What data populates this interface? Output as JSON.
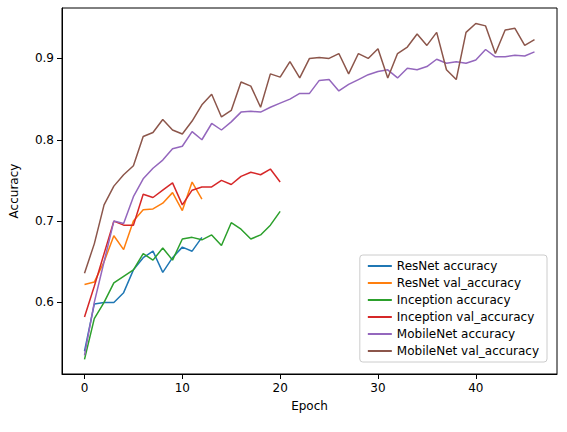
{
  "chart_data": {
    "type": "line",
    "x_label": "Epoch",
    "y_label": "Accuracy",
    "x": [
      0,
      1,
      2,
      3,
      4,
      5,
      6,
      7,
      8,
      9,
      10,
      11,
      12,
      13,
      14,
      15,
      16,
      17,
      18,
      19,
      20,
      21,
      22,
      23,
      24,
      25,
      26,
      27,
      28,
      29,
      30,
      31,
      32,
      33,
      34,
      35,
      36,
      37,
      38,
      39,
      40,
      41,
      42,
      43,
      44,
      45,
      46
    ],
    "xlim": [
      -2.3,
      48.3
    ],
    "xticks": [
      0,
      10,
      20,
      30,
      40
    ],
    "ylim": [
      0.512,
      0.962
    ],
    "yticks": [
      0.6,
      0.7,
      0.8,
      0.9
    ],
    "grid": false,
    "legend": "lower right",
    "series": [
      {
        "name": "ResNet accuracy",
        "color": "#1f77b4",
        "values": [
          0.54,
          0.598,
          0.6,
          0.6,
          0.612,
          0.64,
          0.655,
          0.663,
          0.637,
          0.655,
          0.668,
          0.663,
          0.68,
          null,
          null,
          null,
          null,
          null,
          null,
          null,
          null,
          null,
          null,
          null,
          null,
          null,
          null,
          null,
          null,
          null,
          null,
          null,
          null,
          null,
          null,
          null,
          null,
          null,
          null,
          null,
          null,
          null,
          null,
          null,
          null,
          null,
          null
        ]
      },
      {
        "name": "ResNet val_accuracy",
        "color": "#ff7f0e",
        "values": [
          0.622,
          0.625,
          0.65,
          0.682,
          0.665,
          0.7,
          0.714,
          0.715,
          0.722,
          0.735,
          0.713,
          0.748,
          0.727,
          null,
          null,
          null,
          null,
          null,
          null,
          null,
          null,
          null,
          null,
          null,
          null,
          null,
          null,
          null,
          null,
          null,
          null,
          null,
          null,
          null,
          null,
          null,
          null,
          null,
          null,
          null,
          null,
          null,
          null,
          null,
          null,
          null,
          null
        ]
      },
      {
        "name": "Inception accuracy",
        "color": "#2ca02c",
        "values": [
          0.53,
          0.58,
          0.6,
          0.624,
          0.632,
          0.64,
          0.66,
          0.652,
          0.667,
          0.652,
          0.678,
          0.68,
          0.677,
          0.683,
          0.67,
          0.698,
          0.69,
          0.678,
          0.683,
          0.695,
          0.712,
          null,
          null,
          null,
          null,
          null,
          null,
          null,
          null,
          null,
          null,
          null,
          null,
          null,
          null,
          null,
          null,
          null,
          null,
          null,
          null,
          null,
          null,
          null,
          null,
          null,
          null
        ]
      },
      {
        "name": "Inception val_accuracy",
        "color": "#d62728",
        "values": [
          0.582,
          0.62,
          0.66,
          0.7,
          0.695,
          0.695,
          0.733,
          0.729,
          0.738,
          0.747,
          0.72,
          0.738,
          0.742,
          0.742,
          0.75,
          0.745,
          0.755,
          0.76,
          0.757,
          0.764,
          0.748,
          null,
          null,
          null,
          null,
          null,
          null,
          null,
          null,
          null,
          null,
          null,
          null,
          null,
          null,
          null,
          null,
          null,
          null,
          null,
          null,
          null,
          null,
          null,
          null,
          null,
          null
        ]
      },
      {
        "name": "MobileNet accuracy",
        "color": "#9467bd",
        "values": [
          0.535,
          0.6,
          0.65,
          0.7,
          0.697,
          0.73,
          0.752,
          0.765,
          0.775,
          0.789,
          0.792,
          0.81,
          0.8,
          0.82,
          0.812,
          0.822,
          0.834,
          0.835,
          0.834,
          0.84,
          0.845,
          0.85,
          0.857,
          0.857,
          0.873,
          0.874,
          0.86,
          0.868,
          0.874,
          0.88,
          0.884,
          0.886,
          0.876,
          0.888,
          0.886,
          0.89,
          0.899,
          0.894,
          0.896,
          0.894,
          0.898,
          0.911,
          0.902,
          0.902,
          0.904,
          0.903,
          0.908
        ]
      },
      {
        "name": "MobileNet val_accuracy",
        "color": "#8c564b",
        "values": [
          0.636,
          0.672,
          0.72,
          0.743,
          0.757,
          0.768,
          0.804,
          0.809,
          0.825,
          0.812,
          0.807,
          0.823,
          0.843,
          0.856,
          0.828,
          0.836,
          0.871,
          0.866,
          0.84,
          0.881,
          0.877,
          0.896,
          0.876,
          0.9,
          0.901,
          0.9,
          0.906,
          0.881,
          0.906,
          0.9,
          0.912,
          0.876,
          0.906,
          0.914,
          0.93,
          0.916,
          0.932,
          0.886,
          0.874,
          0.932,
          0.943,
          0.94,
          0.906,
          0.935,
          0.937,
          0.916,
          0.923
        ]
      }
    ]
  }
}
